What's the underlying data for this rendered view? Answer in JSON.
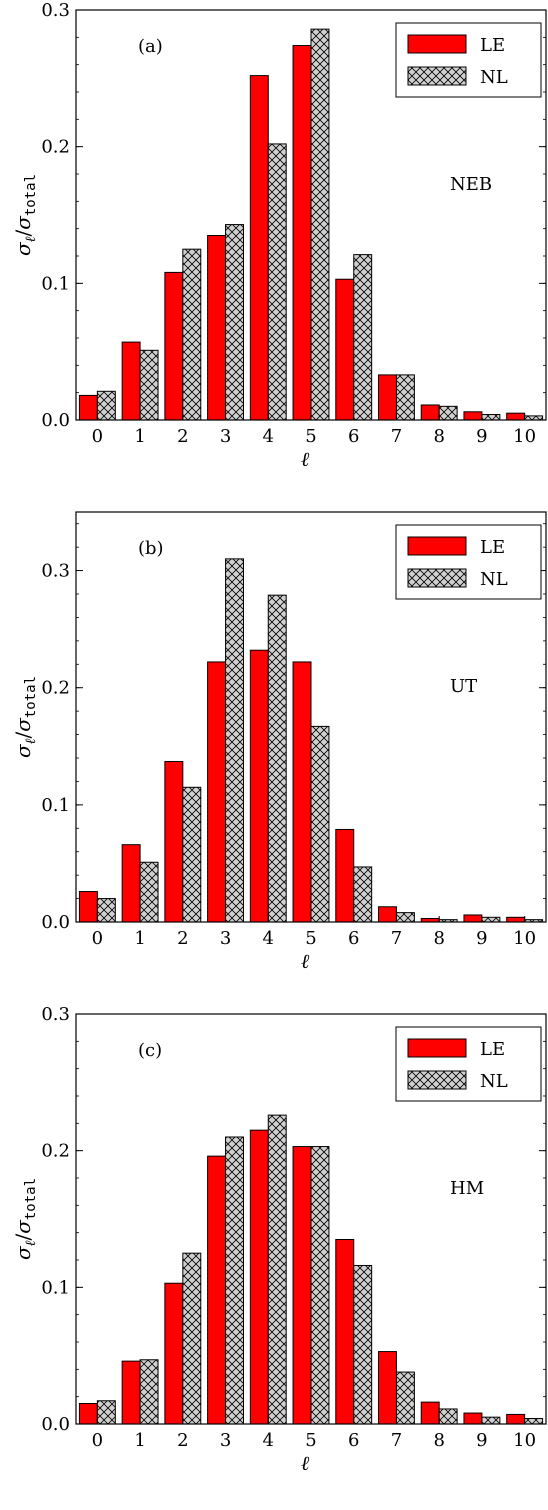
{
  "colors": {
    "le_fill": "#ff0000",
    "nl_fill": "#d0d0d0",
    "edge": "#000000",
    "hatch": "#000000"
  },
  "legend": {
    "le": "LE",
    "nl": "NL",
    "placement": "top-right"
  },
  "chart_data": [
    {
      "type": "bar",
      "panel_label": "(a)",
      "dataset": "NEB",
      "xlabel": "ℓ",
      "ylabel": "σ_ℓ/σ_total",
      "ylim": [
        0,
        0.3
      ],
      "yticks": [
        "0.0",
        "0.1",
        "0.2",
        "0.3"
      ],
      "categories": [
        "0",
        "1",
        "2",
        "3",
        "4",
        "5",
        "6",
        "7",
        "8",
        "9",
        "10"
      ],
      "series": [
        {
          "name": "LE",
          "values": [
            0.018,
            0.057,
            0.108,
            0.135,
            0.252,
            0.274,
            0.103,
            0.033,
            0.011,
            0.006,
            0.005
          ]
        },
        {
          "name": "NL",
          "values": [
            0.021,
            0.051,
            0.125,
            0.143,
            0.202,
            0.286,
            0.121,
            0.033,
            0.01,
            0.004,
            0.003
          ]
        }
      ]
    },
    {
      "type": "bar",
      "panel_label": "(b)",
      "dataset": "UT",
      "xlabel": "ℓ",
      "ylabel": "σ_ℓ/σ_total",
      "ylim": [
        0,
        0.35
      ],
      "yticks": [
        "0.0",
        "0.1",
        "0.2",
        "0.3"
      ],
      "categories": [
        "0",
        "1",
        "2",
        "3",
        "4",
        "5",
        "6",
        "7",
        "8",
        "9",
        "10"
      ],
      "series": [
        {
          "name": "LE",
          "values": [
            0.026,
            0.066,
            0.137,
            0.222,
            0.232,
            0.222,
            0.079,
            0.013,
            0.003,
            0.006,
            0.004
          ]
        },
        {
          "name": "NL",
          "values": [
            0.02,
            0.051,
            0.115,
            0.31,
            0.279,
            0.167,
            0.047,
            0.008,
            0.002,
            0.004,
            0.002
          ]
        }
      ]
    },
    {
      "type": "bar",
      "panel_label": "(c)",
      "dataset": "HM",
      "xlabel": "ℓ",
      "ylabel": "σ_ℓ/σ_total",
      "ylim": [
        0,
        0.3
      ],
      "yticks": [
        "0.0",
        "0.1",
        "0.2",
        "0.3"
      ],
      "categories": [
        "0",
        "1",
        "2",
        "3",
        "4",
        "5",
        "6",
        "7",
        "8",
        "9",
        "10"
      ],
      "series": [
        {
          "name": "LE",
          "values": [
            0.015,
            0.046,
            0.103,
            0.196,
            0.215,
            0.203,
            0.135,
            0.053,
            0.016,
            0.008,
            0.007
          ]
        },
        {
          "name": "NL",
          "values": [
            0.017,
            0.047,
            0.125,
            0.21,
            0.226,
            0.203,
            0.116,
            0.038,
            0.011,
            0.005,
            0.004
          ]
        }
      ]
    }
  ]
}
